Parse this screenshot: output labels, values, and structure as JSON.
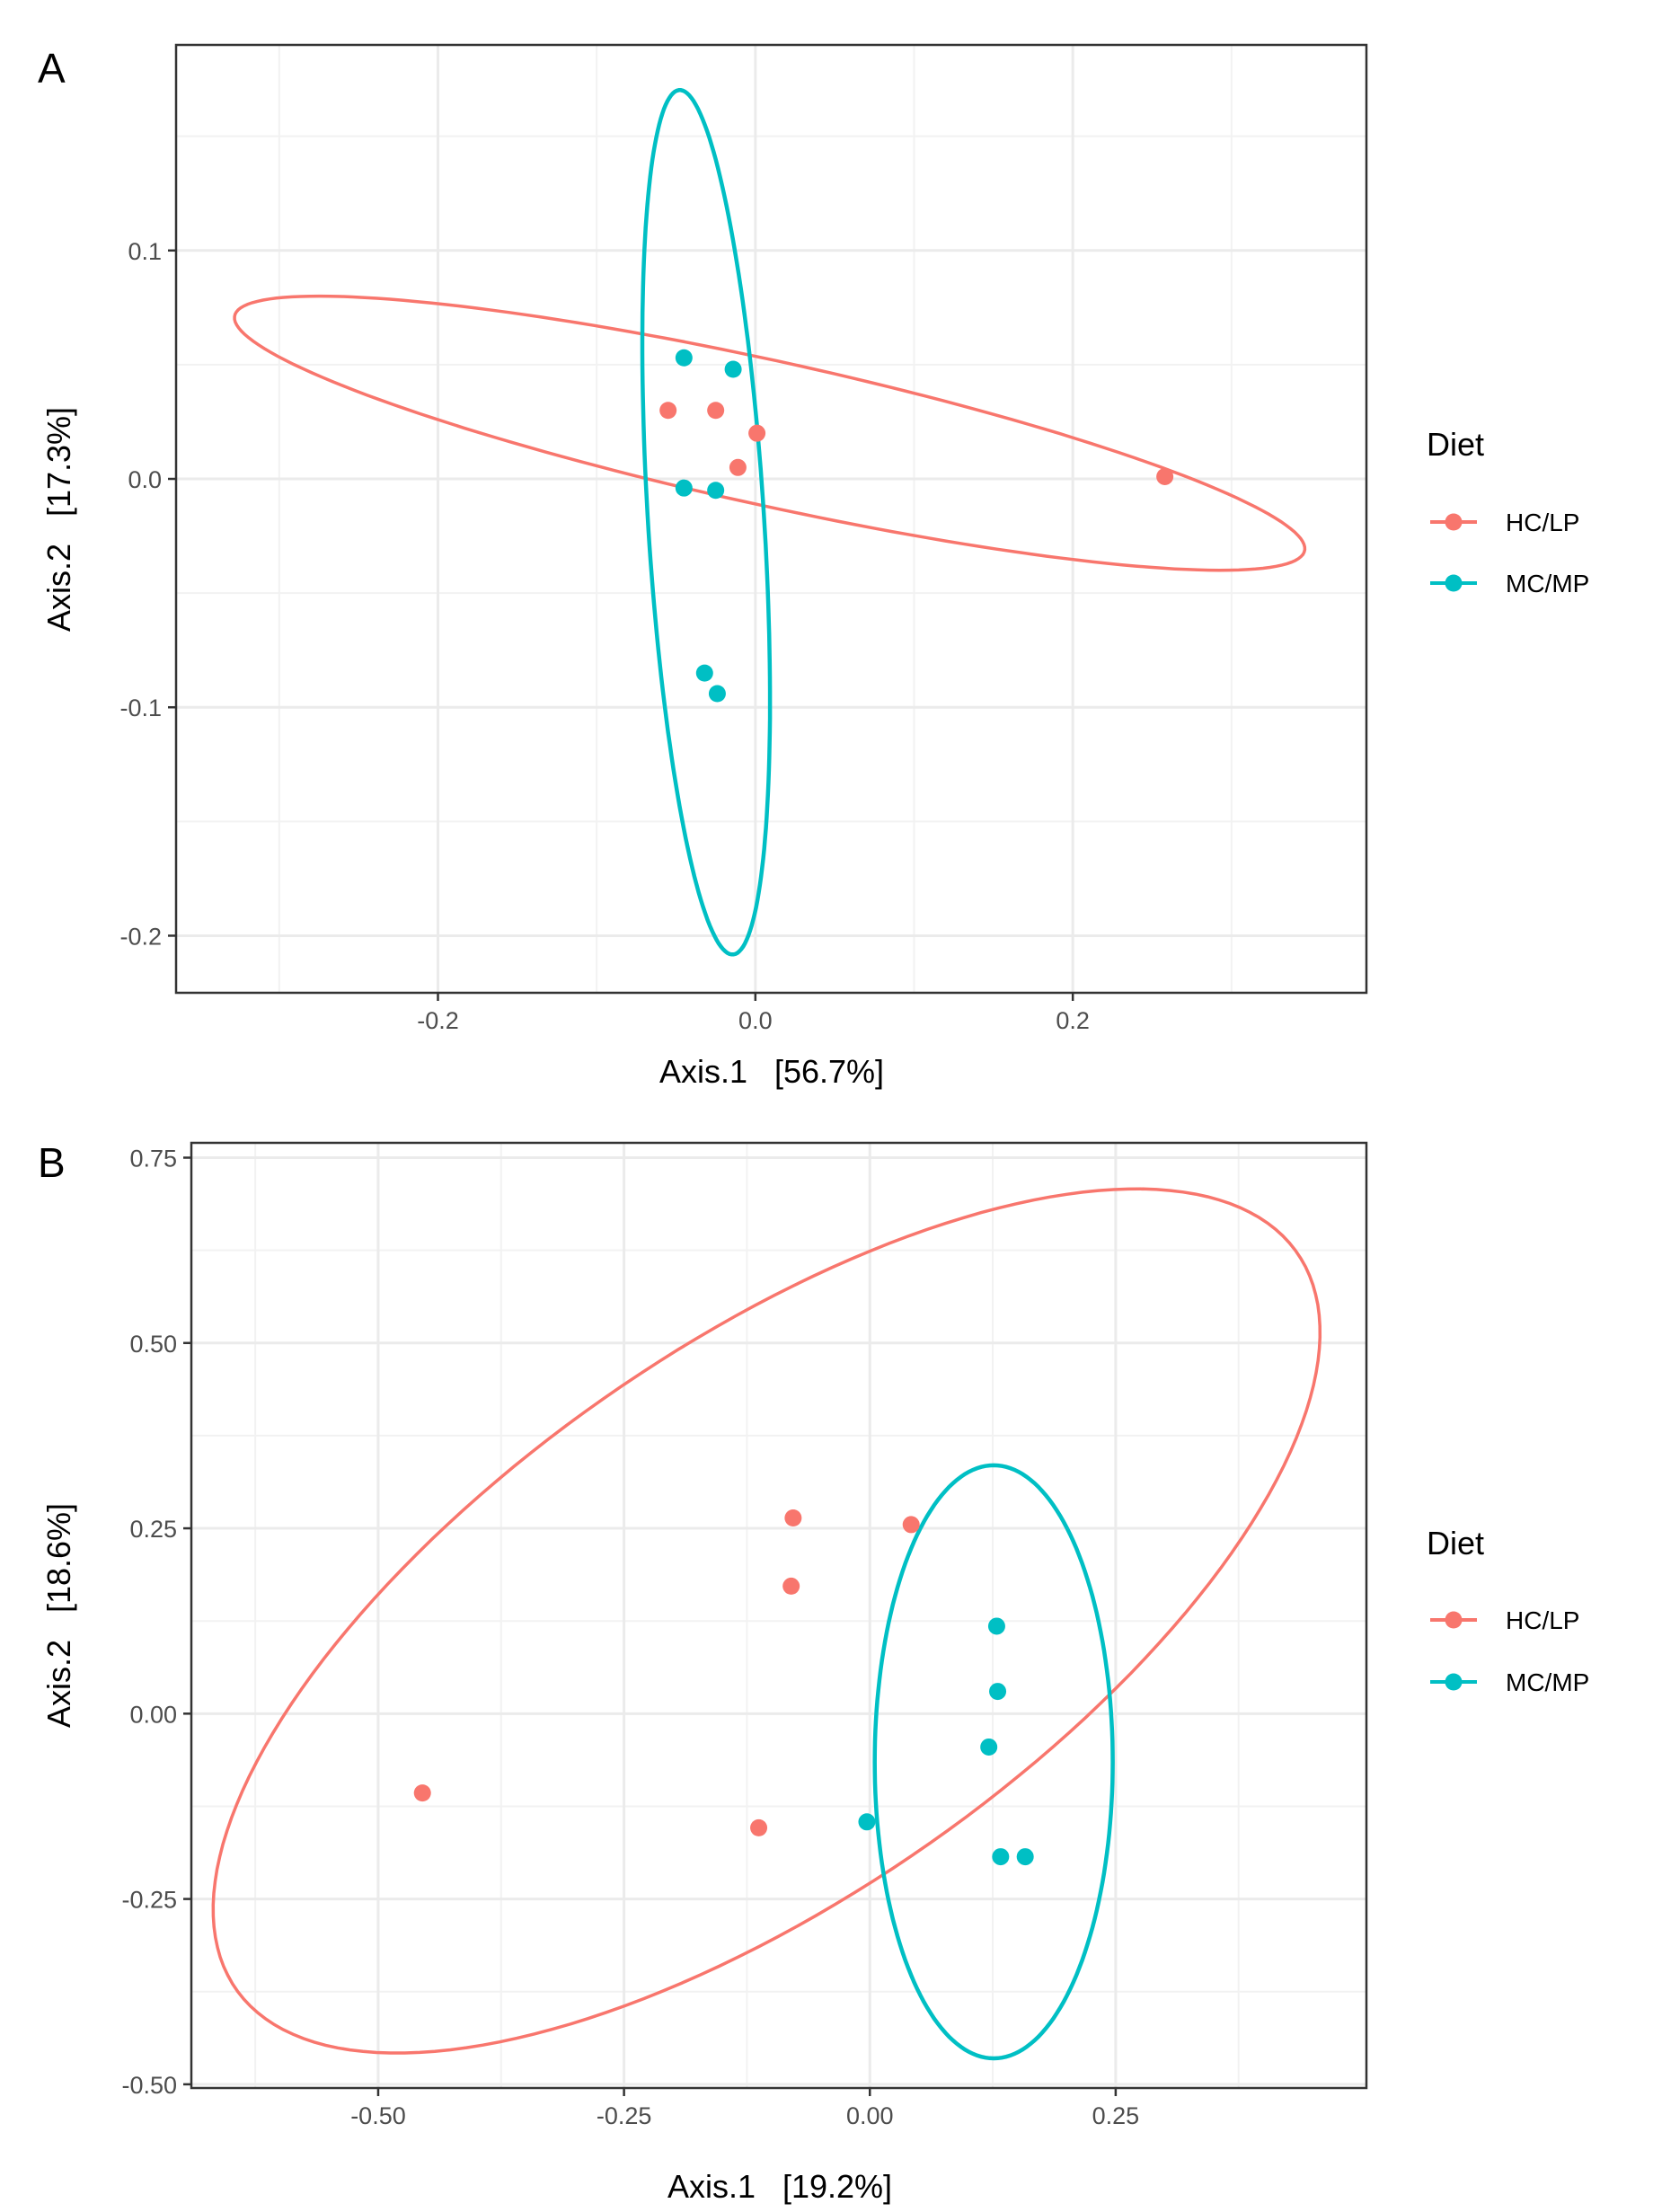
{
  "chart_data": [
    {
      "panel": "A",
      "type": "scatter",
      "xlabel": "Axis.1   [56.7%]",
      "ylabel": "Axis.2   [17.3%]",
      "xlim": [
        -0.365,
        0.385
      ],
      "ylim": [
        -0.225,
        0.19
      ],
      "x_ticks": [
        -0.2,
        0.0,
        0.2
      ],
      "x_tick_labels": [
        "-0.2",
        "0.0",
        "0.2"
      ],
      "y_ticks": [
        -0.2,
        -0.1,
        0.0,
        0.1
      ],
      "y_tick_labels": [
        "-0.2",
        "-0.1",
        "0.0",
        "0.1"
      ],
      "grid": true,
      "legend": {
        "title": "Diet",
        "position": "right",
        "entries": [
          "HC/LP",
          "MC/MP"
        ]
      },
      "series": [
        {
          "name": "HC/LP",
          "color": "#F8766D",
          "points": [
            [
              -0.055,
              0.03
            ],
            [
              -0.025,
              0.03
            ],
            [
              0.001,
              0.02
            ],
            [
              -0.011,
              0.005
            ],
            [
              0.258,
              0.001
            ]
          ],
          "ellipse": {
            "center": [
              0.009,
              0.02
            ],
            "semi_major": 0.341,
            "semi_minor": 0.032,
            "angle_deg": -8.6
          }
        },
        {
          "name": "MC/MP",
          "color": "#00BFC4",
          "points": [
            [
              -0.045,
              0.053
            ],
            [
              -0.014,
              0.048
            ],
            [
              -0.045,
              -0.004
            ],
            [
              -0.025,
              -0.005
            ],
            [
              -0.032,
              -0.085
            ],
            [
              -0.024,
              -0.094
            ]
          ],
          "ellipse": {
            "center": [
              -0.031,
              -0.019
            ],
            "semi_major": 0.19,
            "semi_minor": 0.0365,
            "angle_deg": 95.2
          }
        }
      ]
    },
    {
      "panel": "B",
      "type": "scatter",
      "xlabel": "Axis.1   [19.2%]",
      "ylabel": "Axis.2   [18.6%]",
      "xlim": [
        -0.69,
        0.505
      ],
      "ylim": [
        -0.505,
        0.77
      ],
      "x_ticks": [
        -0.5,
        -0.25,
        0.0,
        0.25
      ],
      "x_tick_labels": [
        "-0.50",
        "-0.25",
        "0.00",
        "0.25"
      ],
      "y_ticks": [
        -0.5,
        -0.25,
        0.0,
        0.25,
        0.5,
        0.75
      ],
      "y_tick_labels": [
        "-0.50",
        "-0.25",
        "0.00",
        "0.25",
        "0.50",
        "0.75"
      ],
      "grid": true,
      "legend": {
        "title": "Diet",
        "position": "right",
        "entries": [
          "HC/LP",
          "MC/MP"
        ]
      },
      "series": [
        {
          "name": "HC/LP",
          "color": "#F8766D",
          "points": [
            [
              -0.078,
              0.264
            ],
            [
              0.042,
              0.255
            ],
            [
              -0.08,
              0.172
            ],
            [
              -0.455,
              -0.107
            ],
            [
              -0.113,
              -0.154
            ]
          ],
          "ellipse": {
            "center": [
              -0.105,
              0.125
            ],
            "semi_major": 0.74,
            "semi_minor": 0.33,
            "angle_deg": 46.5
          }
        },
        {
          "name": "MC/MP",
          "color": "#00BFC4",
          "points": [
            [
              0.129,
              0.118
            ],
            [
              0.13,
              0.03
            ],
            [
              0.121,
              -0.045
            ],
            [
              -0.003,
              -0.146
            ],
            [
              0.133,
              -0.193
            ],
            [
              0.158,
              -0.193
            ]
          ],
          "ellipse": {
            "center": [
              0.126,
              -0.065
            ],
            "semi_major": 0.4,
            "semi_minor": 0.121,
            "angle_deg": 90
          }
        }
      ]
    }
  ]
}
